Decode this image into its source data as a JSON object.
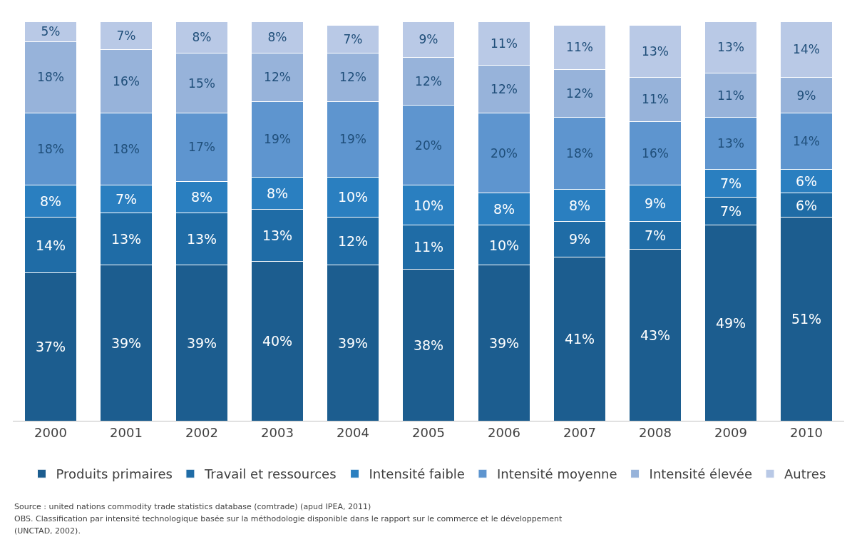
{
  "chart_data": {
    "type": "bar",
    "stacked": true,
    "categories": [
      "2000",
      "2001",
      "2002",
      "2003",
      "2004",
      "2005",
      "2006",
      "2007",
      "2008",
      "2009",
      "2010"
    ],
    "series": [
      {
        "name": "Produits primaires",
        "color": "#1c5d8f",
        "values": [
          37,
          39,
          39,
          40,
          39,
          38,
          39,
          41,
          43,
          49,
          51
        ],
        "value_labels": [
          "37%",
          "39%",
          "39%",
          "40%",
          "39%",
          "38%",
          "39%",
          "41%",
          "43%",
          "49%",
          "51%"
        ]
      },
      {
        "name": "Travail et ressources",
        "color": "#1f6ca6",
        "values": [
          14,
          13,
          13,
          13,
          12,
          11,
          10,
          9,
          7,
          7,
          6
        ],
        "value_labels": [
          "14%",
          "13%",
          "13%",
          "13%",
          "12%",
          "11%",
          "10%",
          "9%",
          "7%",
          "7%",
          "6%"
        ]
      },
      {
        "name": "Intensité faible",
        "color": "#2a7fc0",
        "values": [
          8,
          7,
          8,
          8,
          10,
          10,
          8,
          8,
          9,
          7,
          6
        ],
        "value_labels": [
          "8%",
          "7%",
          "8%",
          "8%",
          "10%",
          "10%",
          "8%",
          "8%",
          "9%",
          "7%",
          "6%"
        ]
      },
      {
        "name": "Intensité moyenne",
        "color": "#5e95cf",
        "values": [
          18,
          18,
          17,
          19,
          19,
          20,
          20,
          18,
          16,
          13,
          14
        ],
        "value_labels": [
          "18%",
          "18%",
          "17%",
          "19%",
          "19%",
          "20%",
          "20%",
          "18%",
          "16%",
          "13%",
          "14%"
        ]
      },
      {
        "name": "Intensité élevée",
        "color": "#97b3da",
        "values": [
          18,
          16,
          15,
          12,
          12,
          12,
          12,
          12,
          11,
          11,
          9
        ],
        "value_labels": [
          "18%",
          "16%",
          "15%",
          "12%",
          "12%",
          "12%",
          "12%",
          "12%",
          "11%",
          "11%",
          "9%"
        ]
      },
      {
        "name": "Autres",
        "color": "#b9c9e6",
        "values": [
          5,
          7,
          8,
          8,
          7,
          9,
          11,
          11,
          13,
          13,
          14
        ],
        "value_labels": [
          "5%",
          "7%",
          "8%",
          "8%",
          "7%",
          "9%",
          "11%",
          "11%",
          "13%",
          "13%",
          "14%"
        ]
      }
    ],
    "ylim": [
      0,
      100
    ],
    "tick_labels": "x",
    "legend": "bottom",
    "annotations": [
      "Source : united nations commodity trade statistics database (comtrade) (apud IPEA, 2011)",
      "OBS. Classification par intensité technologique basée sur la méthodologie disponible dans le rapport sur le commerce et le développement",
      "(UNCTAD, 2002)."
    ]
  }
}
